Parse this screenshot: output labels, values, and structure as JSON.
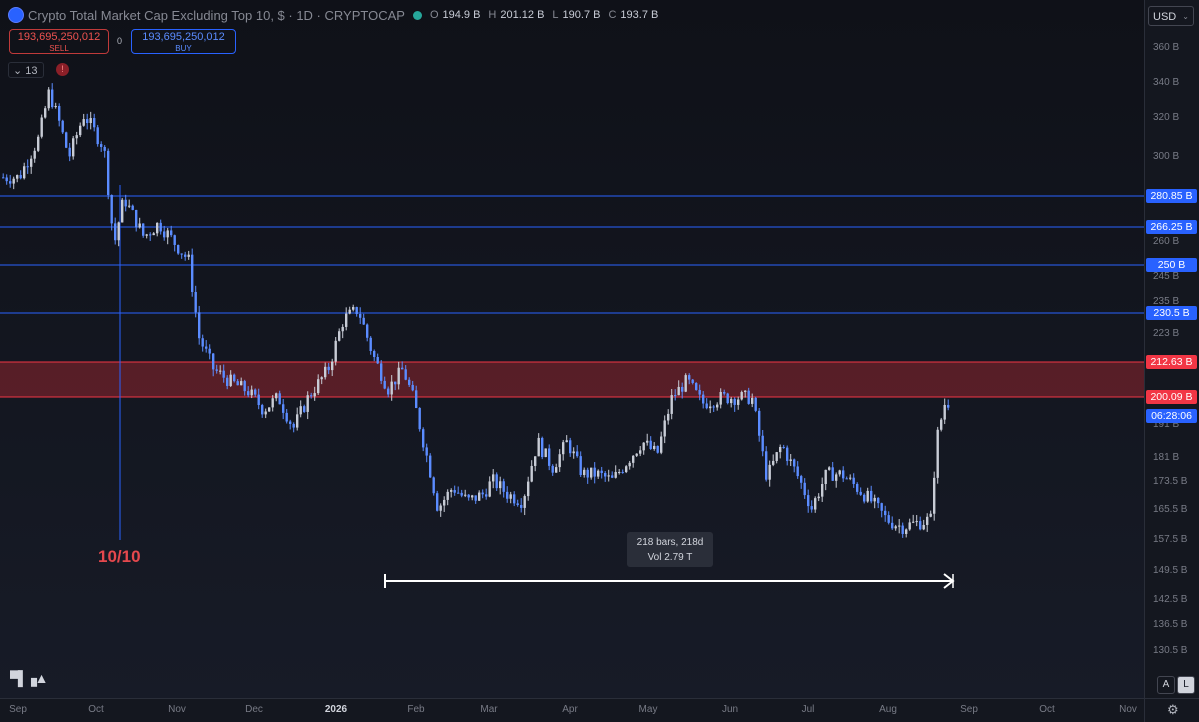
{
  "header": {
    "title": "Crypto Total Market Cap Excluding Top 10, $ · 1D · CRYPTOCAP",
    "ohlc": [
      {
        "k": "O",
        "v": "194.9 B"
      },
      {
        "k": "H",
        "v": "201.12 B"
      },
      {
        "k": "L",
        "v": "190.7 B"
      },
      {
        "k": "C",
        "v": "193.7 B"
      }
    ]
  },
  "trade": {
    "sell_value": "193,695,250,012",
    "sell_label": "SELL",
    "spread": "0",
    "buy_value": "193,695,250,012",
    "buy_label": "BUY"
  },
  "indicator_count": "13",
  "warning": "!",
  "currency": "USD",
  "price_ticks": [
    "360 B",
    "340 B",
    "320 B",
    "300 B",
    "260 B",
    "245 B",
    "235 B",
    "223 B",
    "191 B",
    "181 B",
    "173.5 B",
    "165.5 B",
    "157.5 B",
    "149.5 B",
    "142.5 B",
    "136.5 B",
    "130.5 B"
  ],
  "price_tags": [
    {
      "label": "280.85 B",
      "color": "#2962ff"
    },
    {
      "label": "266.25 B",
      "color": "#2962ff"
    },
    {
      "label": "250 B",
      "color": "#2962ff"
    },
    {
      "label": "230.5 B",
      "color": "#2962ff"
    },
    {
      "label": "212.63 B",
      "color": "#f23645"
    },
    {
      "label": "200.09 B",
      "color": "#f23645"
    },
    {
      "label": "06:28:06",
      "color": "#2962ff"
    }
  ],
  "time_ticks": [
    "Sep",
    "Oct",
    "Nov",
    "Dec",
    "2026",
    "Feb",
    "Mar",
    "Apr",
    "May",
    "Jun",
    "Jul",
    "Aug",
    "Sep",
    "Oct",
    "Nov"
  ],
  "annotation": "10/10",
  "measure": {
    "line1": "218 bars, 218d",
    "line2": "Vol 2.79 T"
  },
  "toolbar": {
    "a": "A",
    "l": "L",
    "gear": "⚙"
  },
  "colors": {
    "up": "#c8ccd6",
    "down": "#5b8cff",
    "resistance": "#f23645",
    "level": "#2962ff"
  },
  "chart_data": {
    "type": "candlestick",
    "title": "Crypto Total Market Cap Excluding Top 10, $ · 1D · CRYPTOCAP",
    "units": "B USD",
    "x_start": "Sep 2025",
    "x_end": "Nov 2026",
    "ylim": [
      127,
      367
    ],
    "price_lines": [
      280.85,
      266.25,
      250,
      230.5
    ],
    "resistance_zone": [
      200.09,
      212.63
    ],
    "close_path": [
      [
        0.0,
        290
      ],
      [
        0.04,
        310
      ],
      [
        0.06,
        335
      ],
      [
        0.08,
        318
      ],
      [
        0.1,
        300
      ],
      [
        0.13,
        322
      ],
      [
        0.17,
        305
      ],
      [
        0.19,
        258
      ],
      [
        0.21,
        280
      ],
      [
        0.25,
        262
      ],
      [
        0.28,
        268
      ],
      [
        0.31,
        260
      ],
      [
        0.34,
        252
      ],
      [
        0.36,
        222
      ],
      [
        0.39,
        210
      ],
      [
        0.42,
        206
      ],
      [
        0.46,
        202
      ],
      [
        0.49,
        196
      ],
      [
        0.52,
        200
      ],
      [
        0.55,
        190
      ],
      [
        0.58,
        200
      ],
      [
        0.62,
        210
      ],
      [
        0.65,
        228
      ],
      [
        0.68,
        232
      ],
      [
        0.71,
        215
      ],
      [
        0.74,
        203
      ],
      [
        0.77,
        210
      ],
      [
        0.79,
        200
      ],
      [
        0.82,
        180
      ],
      [
        0.84,
        166
      ],
      [
        0.87,
        172
      ],
      [
        0.9,
        168
      ],
      [
        0.93,
        170
      ],
      [
        0.95,
        174
      ],
      [
        0.98,
        170
      ],
      [
        1.01,
        168
      ],
      [
        1.04,
        186
      ],
      [
        1.07,
        178
      ],
      [
        1.1,
        186
      ],
      [
        1.13,
        176
      ],
      [
        1.16,
        176
      ],
      [
        1.19,
        174
      ],
      [
        1.22,
        180
      ],
      [
        1.25,
        186
      ],
      [
        1.28,
        182
      ],
      [
        1.31,
        200
      ],
      [
        1.34,
        206
      ],
      [
        1.37,
        198
      ],
      [
        1.41,
        200
      ],
      [
        1.44,
        200
      ],
      [
        1.47,
        200
      ],
      [
        1.5,
        175
      ],
      [
        1.53,
        185
      ],
      [
        1.56,
        176
      ],
      [
        1.59,
        166
      ],
      [
        1.62,
        176
      ],
      [
        1.65,
        176
      ],
      [
        1.68,
        172
      ],
      [
        1.71,
        168
      ],
      [
        1.74,
        163
      ],
      [
        1.77,
        161
      ],
      [
        1.8,
        162
      ],
      [
        1.83,
        163
      ],
      [
        1.84,
        186
      ],
      [
        1.86,
        200
      ],
      [
        1.87,
        196
      ]
    ]
  }
}
